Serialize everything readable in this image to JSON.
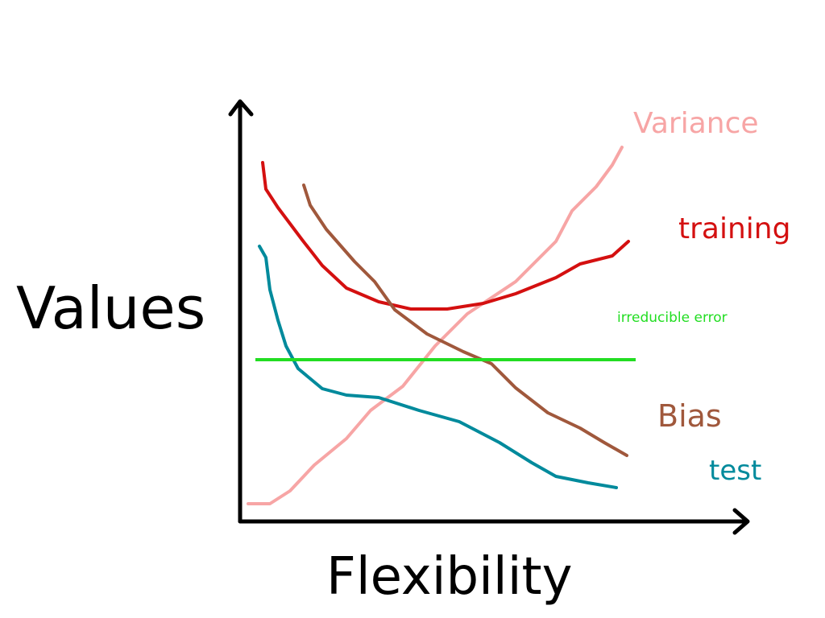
{
  "axes": {
    "y_label": "Values",
    "x_label": "Flexibility"
  },
  "curves": [
    {
      "label": "Variance"
    },
    {
      "label": "training"
    },
    {
      "label": "irreducible error"
    },
    {
      "label": "Bias"
    },
    {
      "label": "test"
    }
  ]
}
